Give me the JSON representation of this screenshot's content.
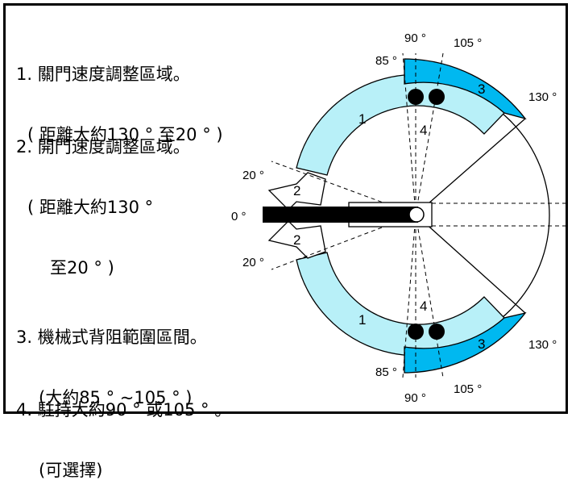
{
  "notes": [
    {
      "line1": "1. 關門速度調整區域。",
      "line2": "( 距離大約130 ° 至20 ° )"
    },
    {
      "line1": "2. 開門速度調整區域。",
      "line2": "( 距離大約130 °",
      "line3": "至20 ° )"
    },
    {
      "line1": "3. 機械式背阻範圍區間。",
      "line2": "(大約85 ° ~105 ° )"
    },
    {
      "line1": "4. 駐持大約90 ° 或105 ° 。",
      "line2": "(可選擇)"
    }
  ],
  "angle_labels": {
    "a0": "0 °",
    "a20": "20 °",
    "a85": "85 °",
    "a90": "90 °",
    "a105": "105 °",
    "a130": "130 °"
  },
  "zone_numbers": {
    "z1": "1",
    "z2": "2",
    "z3": "3",
    "z4": "4"
  },
  "colors": {
    "zone1_fill": "#b8f0f8",
    "zone3_fill": "#00b8f0",
    "outline": "#000000",
    "door_bar": "#000000",
    "background": "#ffffff"
  }
}
